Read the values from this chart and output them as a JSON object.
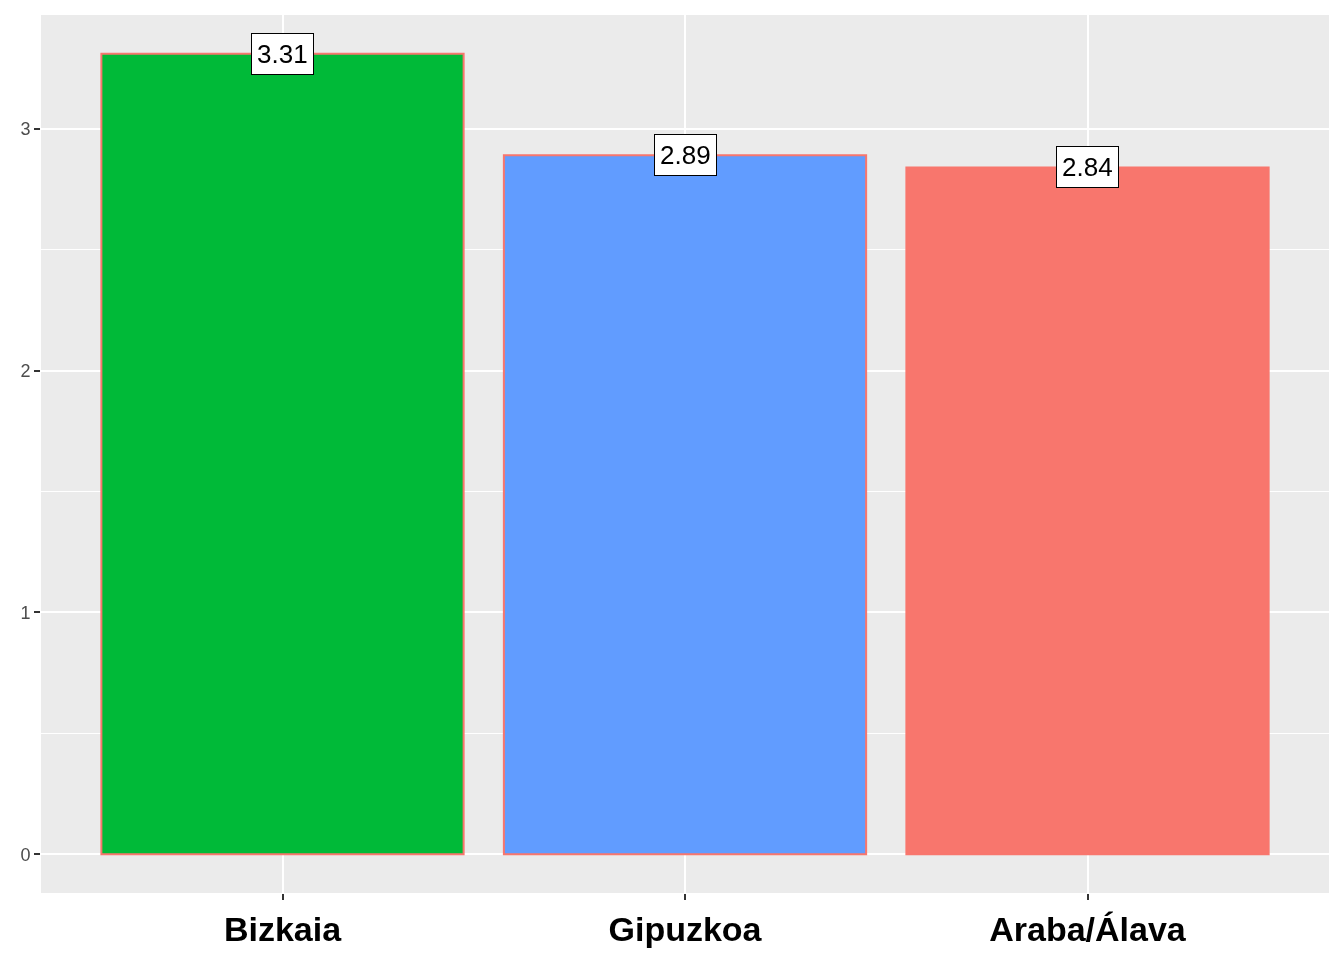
{
  "chart_data": {
    "type": "bar",
    "categories": [
      "Bizkaia",
      "Gipuzkoa",
      "Araba/Álava"
    ],
    "values": [
      3.31,
      2.89,
      2.84
    ],
    "colors": [
      "#00ba38",
      "#619cff",
      "#f8766d"
    ],
    "ylim": [
      -0.16,
      3.47
    ],
    "yticks": [
      0,
      1,
      2,
      3
    ],
    "grid": true,
    "data_labels": true
  }
}
